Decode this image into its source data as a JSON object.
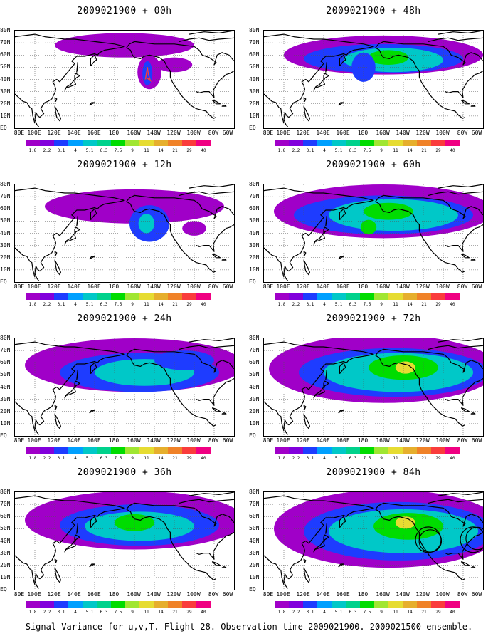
{
  "panels": [
    {
      "title": "2009021900  + 00h"
    },
    {
      "title": "2009021900  + 48h"
    },
    {
      "title": "2009021900  + 12h"
    },
    {
      "title": "2009021900  + 60h"
    },
    {
      "title": "2009021900  + 24h"
    },
    {
      "title": "2009021900  + 72h"
    },
    {
      "title": "2009021900  + 36h"
    },
    {
      "title": "2009021900  + 84h"
    }
  ],
  "lon_labels": [
    "80E",
    "100E",
    "120E",
    "140E",
    "160E",
    "180",
    "160W",
    "140W",
    "120W",
    "100W",
    "80W",
    "60W"
  ],
  "lat_labels": [
    "80N",
    "70N",
    "60N",
    "50N",
    "40N",
    "30N",
    "20N",
    "10N",
    "EQ"
  ],
  "colorbar": {
    "labels": [
      "1.8",
      "2.2",
      "3.1",
      "4",
      "5.1",
      "6.3",
      "7.5",
      "9",
      "11",
      "14",
      "21",
      "29",
      "40"
    ],
    "colors": [
      "#a000c8",
      "#8200dc",
      "#1e3cff",
      "#00a0ff",
      "#00c8c8",
      "#00d28c",
      "#00dc00",
      "#a0e632",
      "#e6dc32",
      "#e6af2d",
      "#f08228",
      "#fa3c3c",
      "#f00082"
    ]
  },
  "map_fill_colors": {
    "low": "#a000c8",
    "mid": "#1e3cff",
    "high": "#00c8c8",
    "peak": "#00dc00",
    "max": "#e6dc32"
  },
  "caption": "Signal Variance for u,v,T. Flight 28. Observation time 2009021900. 2009021500 ensemble."
}
